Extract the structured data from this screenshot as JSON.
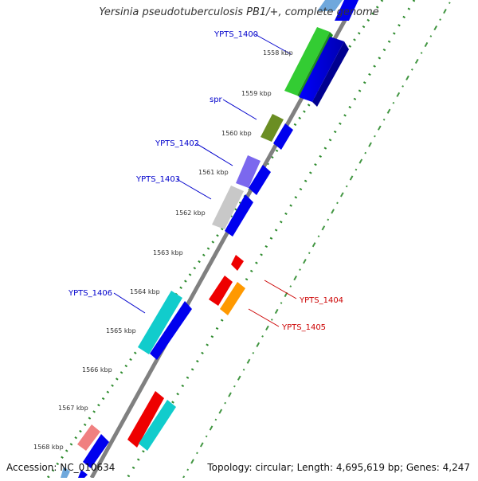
{
  "title": "Yersinia pseudotuberculosis PB1/+, complete genome",
  "accession_text": "Accession: NC_010634",
  "summary_text": "Topology: circular; Length: 4,695,619 bp; Genes: 4,247",
  "kbp_labels": [
    "1558 kbp",
    "1559 kbp",
    "1560 kbp",
    "1561 kbp",
    "1562 kbp",
    "1563 kbp",
    "1564 kbp",
    "1565 kbp",
    "1566 kbp",
    "1567 kbp",
    "1568 kbp"
  ],
  "gene_labels": {
    "ypts_1400": "YPTS_1400",
    "spr": "spr",
    "ypts_1402": "YPTS_1402",
    "ypts_1403": "YPTS_1403",
    "ypts_1404": "YPTS_1404",
    "ypts_1405": "YPTS_1405",
    "ypts_1406": "YPTS_1406"
  },
  "colors": {
    "plus_strand_label": "#0000cc",
    "minus_strand_label": "#cc0000",
    "backbone": "#808080",
    "dots": "#2e8b2e",
    "cds_blue": "#0000ee",
    "green": "#33cc33",
    "olive": "#6b8e23",
    "purple": "#7b68ee",
    "grey": "#c0c0c0",
    "red": "#ee0000",
    "orange": "#ff9900",
    "cyan": "#11cccc",
    "pink": "#f08080"
  }
}
